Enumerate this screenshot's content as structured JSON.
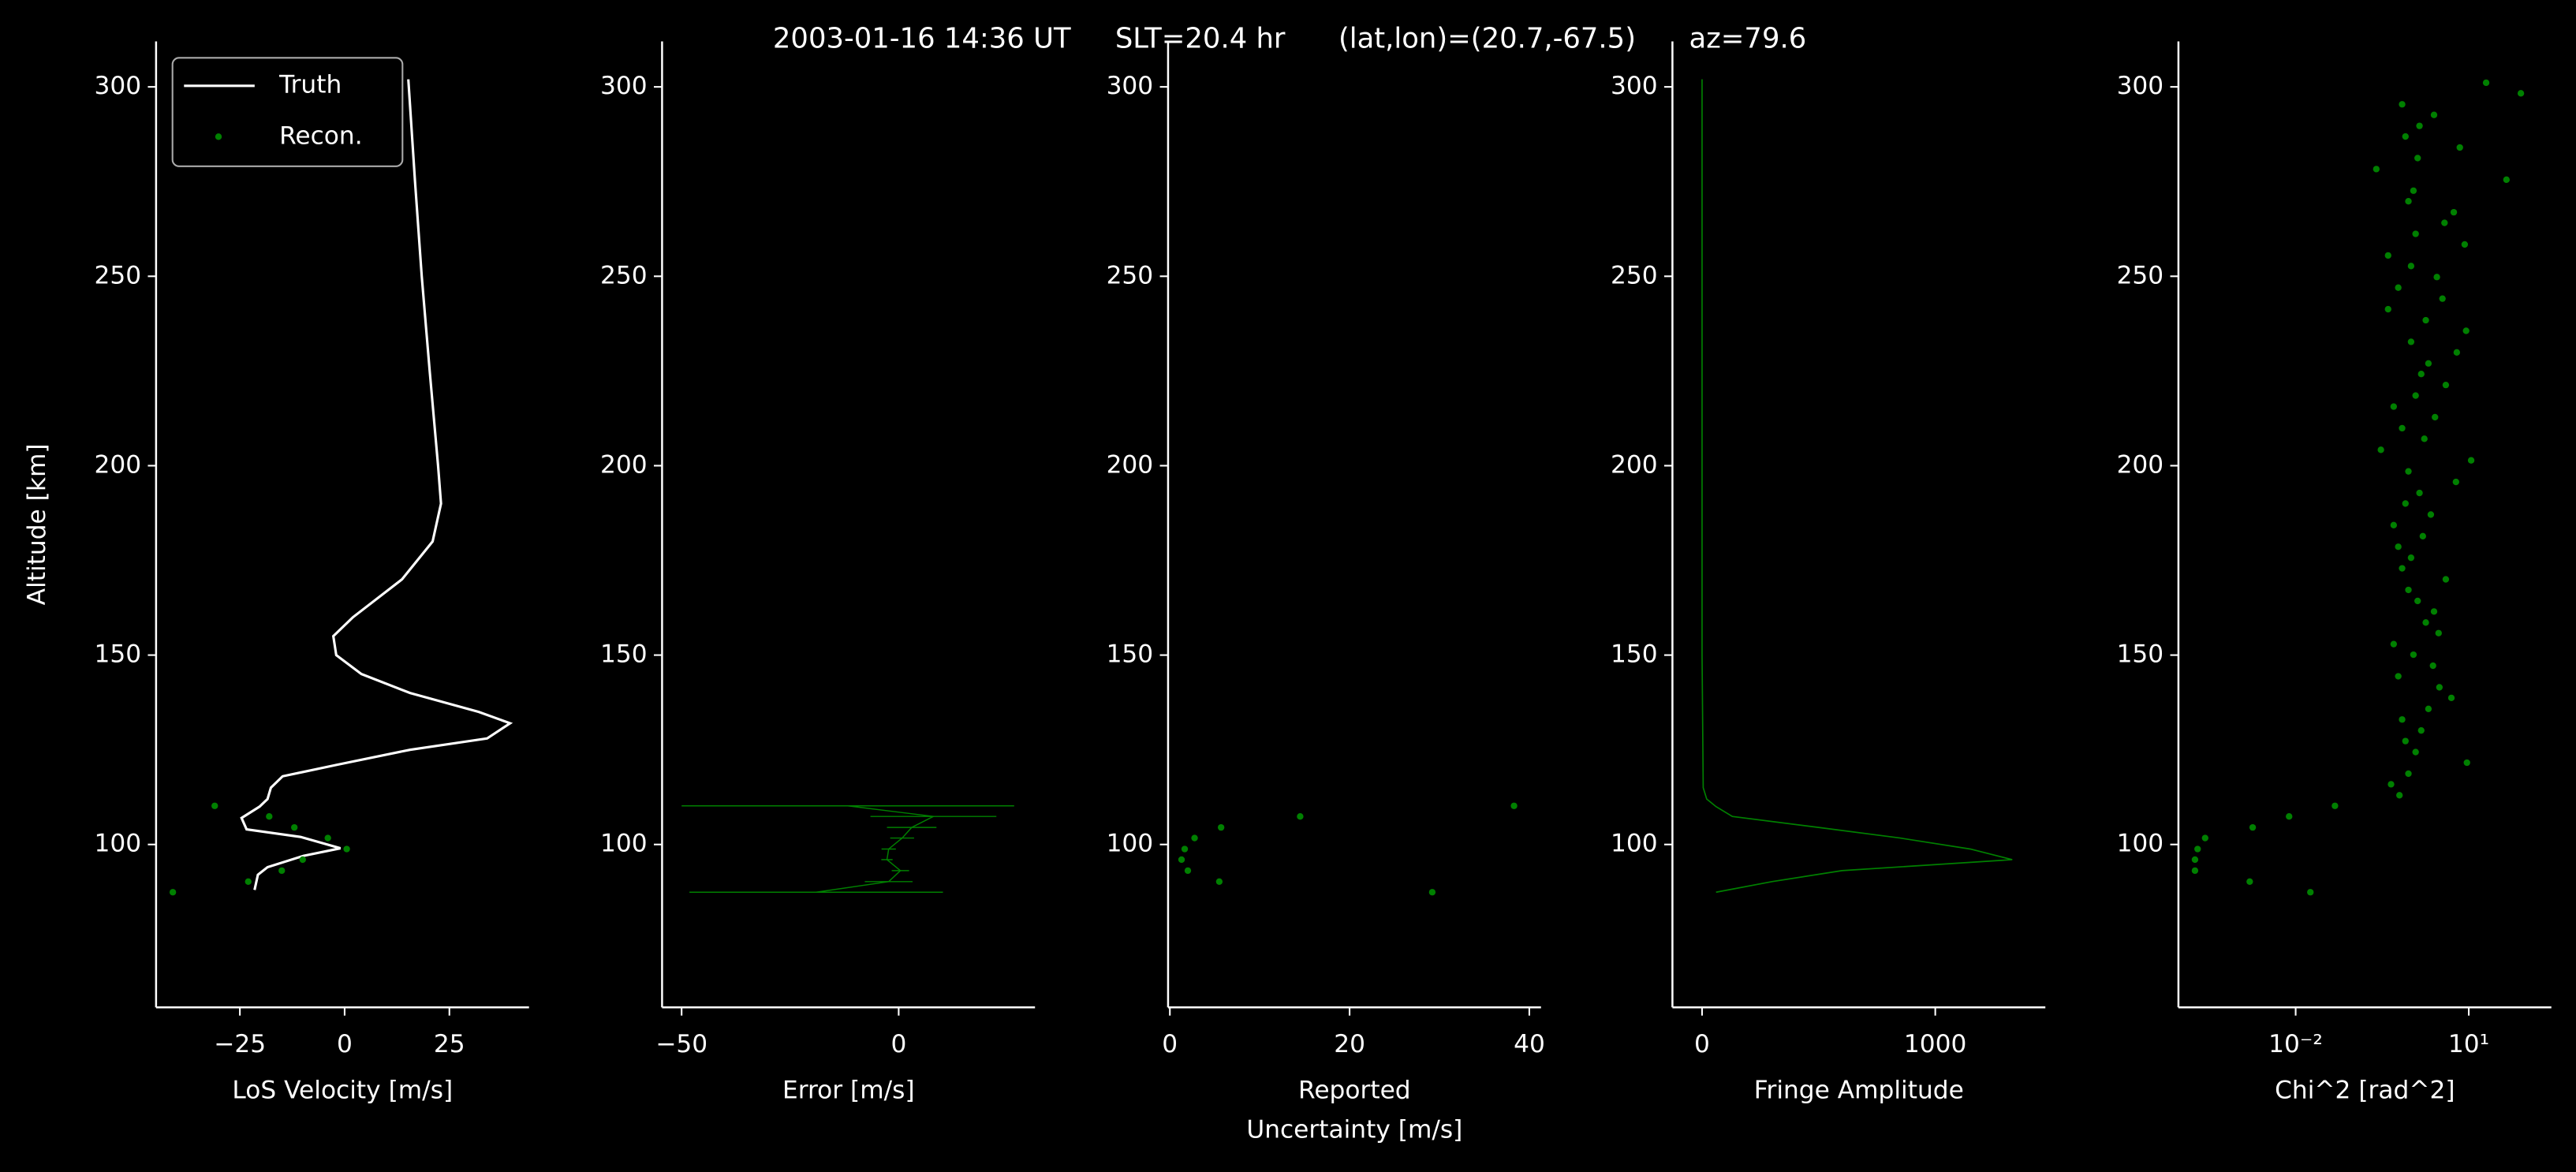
{
  "title": "2003-01-16 14:36 UT     SLT=20.4 hr      (lat,lon)=(20.7,-67.5)      az=79.6",
  "chart_data": [
    {
      "type": "line",
      "xlabel": "LoS Velocity [m/s]",
      "ylabel": "Altitude [km]",
      "xlim": [
        -45,
        44
      ],
      "ylim": [
        57,
        312
      ],
      "xticks": [
        {
          "value": -25,
          "label": "−25"
        },
        0,
        25
      ],
      "yticks": [
        100,
        150,
        200,
        250,
        300
      ],
      "legend": "upper left",
      "series": [
        {
          "name": "Truth",
          "color": "#ffffff",
          "style": "line",
          "x": [
            15.2,
            16.8,
            18.4,
            20.3,
            22.3,
            23,
            21,
            13.7,
            2,
            -2.7,
            -2,
            4,
            15.6,
            32,
            39.5,
            34,
            15.6,
            -2,
            -14.8,
            -17.6,
            -18.4,
            -20.3,
            -24.6,
            -23.4,
            -10.5,
            -1,
            -9.8,
            -18.4,
            -20.7,
            -21.5
          ],
          "y": [
            302,
            275,
            250,
            225,
            200,
            190,
            180,
            170,
            160,
            155,
            150,
            145,
            140,
            135,
            132,
            128,
            125,
            121,
            118,
            115,
            112,
            110,
            107,
            104,
            102,
            99,
            97,
            94,
            92,
            88
          ]
        },
        {
          "name": "Recon.",
          "color": "#008000",
          "style": "points",
          "x": [
            -31,
            -18,
            -12,
            -4,
            0.5,
            -10,
            -15,
            -23,
            -41
          ],
          "y": [
            110.2,
            107.4,
            104.5,
            101.7,
            98.8,
            96.0,
            93.1,
            90.2,
            87.4
          ]
        }
      ]
    },
    {
      "type": "errorbar",
      "xlabel": "Error [m/s]",
      "xlim": [
        -54.5,
        31.4
      ],
      "ylim": [
        57,
        312
      ],
      "xticks": [
        {
          "value": -50,
          "label": "−50"
        },
        0
      ],
      "yticks": [
        100,
        150,
        200,
        250,
        300
      ],
      "series": [
        {
          "color": "#008000",
          "x": [
            -11.7,
            8,
            3,
            0.8,
            -2.3,
            -2.7,
            0.4,
            -2.3,
            -19
          ],
          "xerr": [
            38.3,
            14.5,
            5.7,
            2.75,
            1.65,
            1.3,
            2.0,
            5.5,
            29.2
          ],
          "y": [
            110.2,
            107.4,
            104.5,
            101.7,
            98.8,
            96.0,
            93.1,
            90.2,
            87.4
          ]
        }
      ]
    },
    {
      "type": "scatter",
      "xlabel": "Reported\nUncertainty [m/s]",
      "xlim": [
        -0.2,
        41.3
      ],
      "ylim": [
        57,
        312
      ],
      "xticks": [
        0,
        20,
        40
      ],
      "yticks": [
        100,
        150,
        200,
        250,
        300
      ],
      "series": [
        {
          "color": "#008000",
          "x": [
            38.3,
            14.5,
            5.7,
            2.75,
            1.65,
            1.3,
            2.0,
            5.5,
            29.2
          ],
          "y": [
            110.2,
            107.4,
            104.5,
            101.7,
            98.8,
            96.0,
            93.1,
            90.2,
            87.4
          ]
        }
      ]
    },
    {
      "type": "line",
      "xlabel": "Fringe Amplitude",
      "xlim": [
        -127,
        1472
      ],
      "ylim": [
        57,
        312
      ],
      "xticks": [
        0,
        1000
      ],
      "yticks": [
        100,
        150,
        200,
        250,
        300
      ],
      "series": [
        {
          "color": "#008000",
          "style": "thin",
          "x": [
            0,
            0,
            0,
            0,
            5,
            20,
            60,
            130,
            500,
            850,
            1150,
            1330,
            600,
            300,
            60
          ],
          "y": [
            302,
            250,
            200,
            150,
            115,
            112,
            110,
            107.4,
            104.5,
            101.7,
            98.8,
            96,
            93.1,
            90.2,
            87.4
          ]
        }
      ]
    },
    {
      "type": "scatter",
      "xlabel": "Chi^2 [rad^2]",
      "xscale": "log",
      "xlim": [
        9.3e-05,
        270
      ],
      "ylim": [
        57,
        312
      ],
      "xticks": [
        {
          "value": 0.01,
          "label": "10⁻²"
        },
        {
          "value": 10,
          "label": "10¹"
        }
      ],
      "yticks": [
        100,
        150,
        200,
        250,
        300
      ],
      "series": [
        {
          "color": "#008000",
          "x": [
            0.048,
            0.0077,
            0.0018,
            0.00027,
            0.0002,
            0.00018,
            0.00018,
            0.0016,
            0.018,
            0.63,
            0.45,
            0.9,
            9.3,
            1.2,
            0.8,
            1.5,
            0.7,
            2.0,
            5.0,
            3.1,
            0.6,
            2.4,
            1.1,
            0.5,
            3.0,
            1.8,
            2.5,
            1.3,
            0.9,
            4.0,
            0.7,
            1.0,
            0.6,
            1.6,
            0.5,
            2.2,
            0.8,
            1.4,
            6.0,
            0.9,
            11,
            0.3,
            1.7,
            0.7,
            2.6,
            0.5,
            1.2,
            4.0,
            1.5,
            2.0,
            6.2,
            1.0,
            9.0,
            1.8,
            0.4,
            3.5,
            0.6,
            2.8,
            1.0,
            0.4,
            8.5,
            1.2,
            3.8,
            5.5,
            0.9,
            1.1,
            45,
            0.25,
            1.3,
            7.0,
            0.8,
            1.4,
            2.5,
            0.7,
            80,
            20
          ],
          "y": [
            110.2,
            107.4,
            104.5,
            101.7,
            98.8,
            96.0,
            93.1,
            90.2,
            87.4,
            113.0,
            115.9,
            118.7,
            121.6,
            124.4,
            127.3,
            130.1,
            133.0,
            135.8,
            138.7,
            141.5,
            144.4,
            147.2,
            150.1,
            152.9,
            155.8,
            158.6,
            161.5,
            164.3,
            167.2,
            170.0,
            172.9,
            175.7,
            178.6,
            181.4,
            184.3,
            187.1,
            190.0,
            192.8,
            195.7,
            198.5,
            201.4,
            204.2,
            207.1,
            209.9,
            212.8,
            215.6,
            218.5,
            221.3,
            224.2,
            227.0,
            229.9,
            232.7,
            235.6,
            238.4,
            241.3,
            244.1,
            247.0,
            249.8,
            252.7,
            255.5,
            258.4,
            261.2,
            264.1,
            266.9,
            269.8,
            272.6,
            275.5,
            278.3,
            281.2,
            284.0,
            286.9,
            289.7,
            292.6,
            295.4,
            298.3,
            301.1
          ]
        }
      ]
    }
  ]
}
